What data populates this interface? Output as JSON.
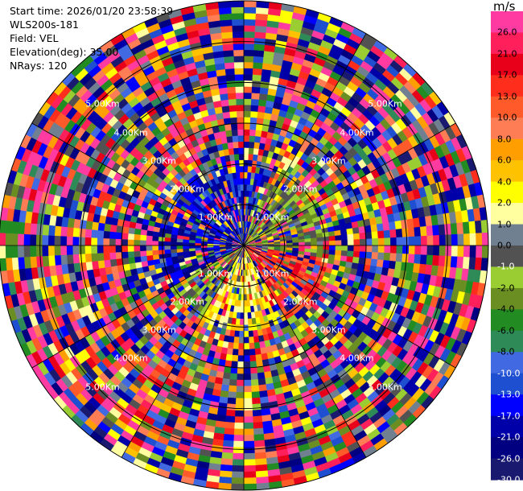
{
  "header": {
    "start_time": "Start time: 2026/01/20 23:58:39",
    "site": "WLS200s-181",
    "field": "Field: VEL",
    "elevation": "Elevation(deg): 35.00",
    "nrays": "NRays: 120"
  },
  "colorbar": {
    "unit": "m/s",
    "ticks": [
      "26.0",
      "21.0",
      "17.0",
      "13.0",
      "10.0",
      "8.0",
      "6.0",
      "4.0",
      "2.0",
      "1.0",
      "0.0",
      "-1.0",
      "-2.0",
      "-4.0",
      "-6.0",
      "-8.0",
      "-10.0",
      "-13.0",
      "-17.0",
      "-21.0",
      "-26.0",
      "-30.0"
    ],
    "colors": [
      "#ff3aa0",
      "#ff1f5b",
      "#e8001a",
      "#ff2e1c",
      "#ff5a2a",
      "#ff7d55",
      "#ff9e00",
      "#ffc200",
      "#ffff00",
      "#ffffa0",
      "#708090",
      "#525252",
      "#9acd32",
      "#6b8e23",
      "#228b22",
      "#2e8b57",
      "#4169e1",
      "#1e4fd0",
      "#0000ff",
      "#0000a8",
      "#000080",
      "#191970"
    ]
  },
  "chart_data": {
    "type": "ppi",
    "field": "VEL",
    "units": "m/s",
    "elevation_deg": 35.0,
    "n_rays": 120,
    "range_rings_km": [
      1,
      2,
      3,
      4,
      5
    ],
    "range_ring_labels": [
      "1.00Km",
      "2.00Km",
      "3.00Km",
      "4.00Km",
      "5.00Km"
    ],
    "value_range": [
      -30,
      30
    ]
  }
}
